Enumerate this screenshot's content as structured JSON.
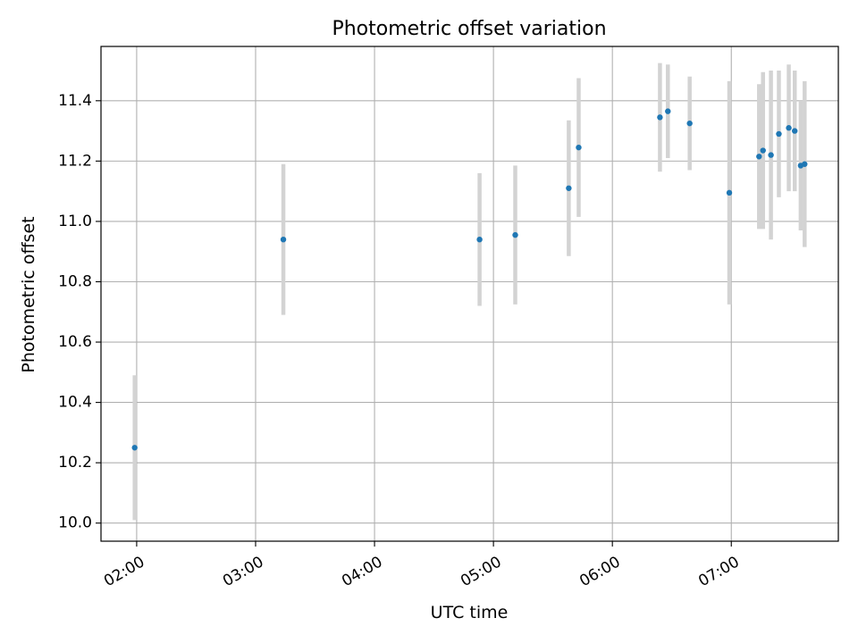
{
  "chart_data": {
    "type": "scatter",
    "title": "Photometric offset variation",
    "xlabel": "UTC time",
    "ylabel": "Photometric offset",
    "x_tick_labels": [
      "02:00",
      "03:00",
      "04:00",
      "05:00",
      "06:00",
      "07:00"
    ],
    "y_tick_labels": [
      "10.0",
      "10.2",
      "10.4",
      "10.6",
      "10.8",
      "11.0",
      "11.2",
      "11.4"
    ],
    "xlim": [
      "01:42",
      "07:54"
    ],
    "ylim": [
      9.94,
      11.58
    ],
    "grid": true,
    "marker_color": "#1f77b4",
    "errorbar_color": "#d3d3d3",
    "series": [
      {
        "points": [
          {
            "x": "01:59",
            "y": 10.25,
            "err": 0.24
          },
          {
            "x": "03:14",
            "y": 10.94,
            "err": 0.25
          },
          {
            "x": "04:53",
            "y": 10.94,
            "err": 0.22
          },
          {
            "x": "05:11",
            "y": 10.955,
            "err": 0.23
          },
          {
            "x": "05:38",
            "y": 11.11,
            "err": 0.225
          },
          {
            "x": "05:43",
            "y": 11.245,
            "err": 0.23
          },
          {
            "x": "06:24",
            "y": 11.345,
            "err": 0.18
          },
          {
            "x": "06:28",
            "y": 11.365,
            "err": 0.155
          },
          {
            "x": "06:39",
            "y": 11.325,
            "err": 0.155
          },
          {
            "x": "06:59",
            "y": 11.095,
            "err": 0.37
          },
          {
            "x": "07:14",
            "y": 11.215,
            "err": 0.24
          },
          {
            "x": "07:16",
            "y": 11.235,
            "err": 0.26
          },
          {
            "x": "07:20",
            "y": 11.22,
            "err": 0.28
          },
          {
            "x": "07:24",
            "y": 11.29,
            "err": 0.21
          },
          {
            "x": "07:29",
            "y": 11.31,
            "err": 0.21
          },
          {
            "x": "07:32",
            "y": 11.3,
            "err": 0.2
          },
          {
            "x": "07:35",
            "y": 11.185,
            "err": 0.215
          },
          {
            "x": "07:37",
            "y": 11.19,
            "err": 0.275
          }
        ]
      }
    ]
  }
}
